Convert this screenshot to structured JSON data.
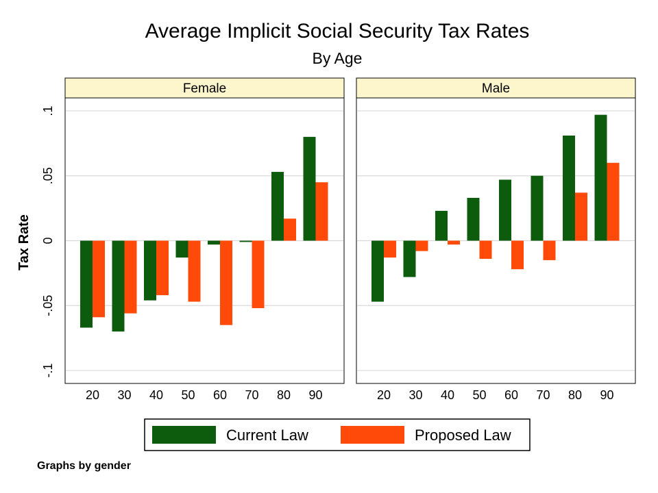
{
  "chart_data": {
    "type": "bar",
    "title": "Average Implicit Social Security Tax Rates",
    "subtitle": "By Age",
    "ylabel": "Tax Rate",
    "xlabel": "",
    "ylim": [
      -0.11,
      0.11
    ],
    "yticks": [
      {
        "value": -0.1,
        "label": "-.1"
      },
      {
        "value": -0.05,
        "label": "-.05"
      },
      {
        "value": 0,
        "label": "0"
      },
      {
        "value": 0.05,
        "label": ".05"
      },
      {
        "value": 0.1,
        "label": ".1"
      }
    ],
    "grid": true,
    "legend_position": "bottom",
    "categories": [
      "20",
      "30",
      "40",
      "50",
      "60",
      "70",
      "80",
      "90"
    ],
    "series_styles": [
      {
        "name": "Current Law",
        "color": "#0d5c0d"
      },
      {
        "name": "Proposed Law",
        "color": "#ff4a0a"
      }
    ],
    "panels": [
      {
        "name": "Female",
        "series": [
          {
            "name": "Current Law",
            "values": [
              -0.067,
              -0.07,
              -0.046,
              -0.013,
              -0.003,
              -0.001,
              0.053,
              0.08
            ]
          },
          {
            "name": "Proposed Law",
            "values": [
              -0.059,
              -0.056,
              -0.042,
              -0.047,
              -0.065,
              -0.052,
              0.017,
              0.045
            ]
          }
        ]
      },
      {
        "name": "Male",
        "series": [
          {
            "name": "Current Law",
            "values": [
              -0.047,
              -0.028,
              0.023,
              0.033,
              0.047,
              0.05,
              0.081,
              0.097
            ]
          },
          {
            "name": "Proposed Law",
            "values": [
              -0.013,
              -0.008,
              -0.003,
              -0.014,
              -0.022,
              -0.015,
              0.037,
              0.06
            ]
          }
        ]
      }
    ],
    "note": "Graphs by gender"
  },
  "colors": {
    "strip_background": "#fdf6cc",
    "gridline": "#d9d9d9"
  }
}
